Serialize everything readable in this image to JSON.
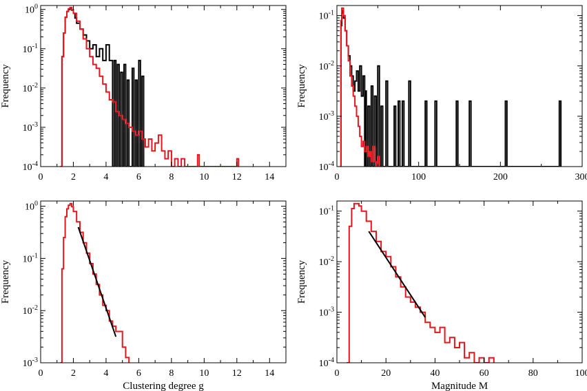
{
  "colors": {
    "black_series": "#000000",
    "red_series": "#e8141c",
    "fit": "#000000"
  },
  "chart_data": [
    {
      "type": "histogram",
      "panel": "top-left",
      "ylabel": "Frequency",
      "xlabel": "",
      "xlim": [
        0,
        15
      ],
      "ylim_log10": [
        -4,
        0.1
      ],
      "xticks": [
        0,
        2,
        4,
        6,
        8,
        10,
        12,
        14
      ],
      "xtick_labels": [
        "0",
        "2",
        "4",
        "6",
        "8",
        "10",
        "12",
        "14"
      ],
      "ytick_exponents": [
        -4,
        -3,
        -2,
        -1,
        0
      ],
      "ytick_base": "10",
      "ytick_exp_labels": [
        "-4",
        "-3",
        "-2",
        "-1",
        "0"
      ],
      "series": [
        {
          "name": "black",
          "color": "#000000",
          "points": [
            [
              1.2,
              -4
            ],
            [
              1.3,
              -1.2
            ],
            [
              1.4,
              -0.6
            ],
            [
              1.5,
              -0.2
            ],
            [
              1.6,
              -0.05
            ],
            [
              1.7,
              0.0
            ],
            [
              1.8,
              0.03
            ],
            [
              1.9,
              -0.02
            ],
            [
              2.0,
              -0.1
            ],
            [
              2.1,
              -0.22
            ],
            [
              2.2,
              -0.35
            ],
            [
              2.4,
              -0.5
            ],
            [
              2.6,
              -0.65
            ],
            [
              2.8,
              -0.8
            ],
            [
              3.0,
              -1.0
            ],
            [
              3.2,
              -0.9
            ],
            [
              3.4,
              -1.2
            ],
            [
              3.6,
              -1.0
            ],
            [
              3.8,
              -1.3
            ],
            [
              4.0,
              -0.9
            ],
            [
              4.2,
              -1.3
            ],
            [
              4.4,
              -4
            ],
            [
              4.5,
              -1.3
            ],
            [
              4.6,
              -4
            ],
            [
              4.7,
              -1.4
            ],
            [
              4.8,
              -4
            ],
            [
              4.9,
              -1.6
            ],
            [
              5.0,
              -4
            ],
            [
              5.1,
              -1.4
            ],
            [
              5.2,
              -4
            ],
            [
              5.3,
              -1.8
            ],
            [
              5.4,
              -4
            ],
            [
              5.6,
              -1.5
            ],
            [
              5.7,
              -4
            ],
            [
              5.8,
              -1.8
            ],
            [
              5.9,
              -4
            ],
            [
              6.0,
              -1.3
            ],
            [
              6.1,
              -4
            ],
            [
              6.2,
              -1.7
            ],
            [
              6.3,
              -4
            ]
          ]
        },
        {
          "name": "red",
          "color": "#e8141c",
          "points": [
            [
              1.2,
              -4
            ],
            [
              1.3,
              -1.2
            ],
            [
              1.4,
              -0.6
            ],
            [
              1.5,
              -0.2
            ],
            [
              1.6,
              -0.05
            ],
            [
              1.7,
              0.02
            ],
            [
              1.8,
              0.05
            ],
            [
              1.9,
              -0.01
            ],
            [
              2.0,
              -0.1
            ],
            [
              2.2,
              -0.3
            ],
            [
              2.4,
              -0.5
            ],
            [
              2.6,
              -0.75
            ],
            [
              2.8,
              -1.0
            ],
            [
              3.0,
              -1.2
            ],
            [
              3.2,
              -1.4
            ],
            [
              3.4,
              -1.5
            ],
            [
              3.6,
              -1.7
            ],
            [
              3.8,
              -1.9
            ],
            [
              4.0,
              -2.1
            ],
            [
              4.2,
              -2.3
            ],
            [
              4.4,
              -2.35
            ],
            [
              4.6,
              -2.6
            ],
            [
              4.8,
              -2.7
            ],
            [
              5.0,
              -2.8
            ],
            [
              5.2,
              -2.9
            ],
            [
              5.4,
              -3.0
            ],
            [
              5.6,
              -3.1
            ],
            [
              5.8,
              -3.2
            ],
            [
              6.0,
              -3.1
            ],
            [
              6.2,
              -3.3
            ],
            [
              6.4,
              -3.5
            ],
            [
              6.6,
              -3.3
            ],
            [
              6.8,
              -3.6
            ],
            [
              7.0,
              -3.4
            ],
            [
              7.2,
              -3.2
            ],
            [
              7.4,
              -3.6
            ],
            [
              7.6,
              -3.8
            ],
            [
              7.8,
              -3.6
            ],
            [
              8.0,
              -4
            ],
            [
              8.2,
              -3.8
            ],
            [
              8.4,
              -4
            ],
            [
              8.6,
              -3.8
            ],
            [
              8.8,
              -4
            ],
            [
              9.6,
              -3.7
            ],
            [
              9.7,
              -4
            ],
            [
              12.0,
              -3.8
            ],
            [
              12.1,
              -4
            ]
          ]
        }
      ]
    },
    {
      "type": "histogram",
      "panel": "top-right",
      "ylabel": "Frequency",
      "xlabel": "",
      "xlim": [
        0,
        300
      ],
      "ylim_log10": [
        -4,
        -0.8
      ],
      "xticks": [
        0,
        100,
        200,
        300
      ],
      "xtick_labels": [
        "0",
        "100",
        "200",
        "300"
      ],
      "ytick_exponents": [
        -4,
        -3,
        -2,
        -1
      ],
      "ytick_base": "10",
      "ytick_exp_labels": [
        "-4",
        "-3",
        "-2",
        "-1"
      ],
      "series": [
        {
          "name": "black",
          "color": "#000000",
          "points": [
            [
              4,
              -4
            ],
            [
              5,
              -1.2
            ],
            [
              6,
              -0.95
            ],
            [
              7,
              -0.9
            ],
            [
              8,
              -1.05
            ],
            [
              10,
              -1.3
            ],
            [
              12,
              -1.6
            ],
            [
              14,
              -1.8
            ],
            [
              16,
              -2.0
            ],
            [
              18,
              -2.2
            ],
            [
              20,
              -2.5
            ],
            [
              22,
              -2.3
            ],
            [
              24,
              -2.1
            ],
            [
              26,
              -2.5
            ],
            [
              28,
              -2.0
            ],
            [
              30,
              -2.6
            ],
            [
              32,
              -2.2
            ],
            [
              34,
              -4
            ],
            [
              35,
              -2.5
            ],
            [
              36,
              -4
            ],
            [
              38,
              -2.8
            ],
            [
              40,
              -4
            ],
            [
              42,
              -2.4
            ],
            [
              44,
              -4
            ],
            [
              46,
              -2.6
            ],
            [
              48,
              -4
            ],
            [
              50,
              -2.0
            ],
            [
              52,
              -4
            ],
            [
              54,
              -2.8
            ],
            [
              56,
              -4
            ],
            [
              60,
              -2.3
            ],
            [
              62,
              -4
            ],
            [
              70,
              -2.8
            ],
            [
              72,
              -4
            ],
            [
              75,
              -2.7
            ],
            [
              77,
              -4
            ],
            [
              80,
              -2.7
            ],
            [
              82,
              -4
            ],
            [
              88,
              -2.3
            ],
            [
              90,
              -4
            ],
            [
              108,
              -2.7
            ],
            [
              110,
              -4
            ],
            [
              120,
              -2.7
            ],
            [
              122,
              -4
            ],
            [
              146,
              -2.7
            ],
            [
              148,
              -4
            ],
            [
              162,
              -2.7
            ],
            [
              164,
              -4
            ],
            [
              206,
              -2.7
            ],
            [
              208,
              -4
            ],
            [
              272,
              -2.7
            ],
            [
              274,
              -4
            ]
          ]
        },
        {
          "name": "red",
          "color": "#e8141c",
          "points": [
            [
              4,
              -4
            ],
            [
              5,
              -1.1
            ],
            [
              6,
              -0.85
            ],
            [
              7,
              -0.85
            ],
            [
              8,
              -1.0
            ],
            [
              10,
              -1.3
            ],
            [
              12,
              -1.6
            ],
            [
              14,
              -1.9
            ],
            [
              16,
              -2.2
            ],
            [
              18,
              -2.4
            ],
            [
              20,
              -2.6
            ],
            [
              22,
              -2.8
            ],
            [
              24,
              -3.0
            ],
            [
              26,
              -3.2
            ],
            [
              28,
              -3.4
            ],
            [
              30,
              -3.6
            ],
            [
              32,
              -3.5
            ],
            [
              34,
              -3.7
            ],
            [
              36,
              -3.6
            ],
            [
              38,
              -3.8
            ],
            [
              40,
              -3.7
            ],
            [
              42,
              -3.9
            ],
            [
              44,
              -3.6
            ],
            [
              46,
              -3.9
            ],
            [
              48,
              -4
            ],
            [
              50,
              -3.8
            ],
            [
              52,
              -4
            ]
          ]
        }
      ]
    },
    {
      "type": "histogram",
      "panel": "bottom-left",
      "ylabel": "Frequency",
      "xlabel": "Clustering degree g",
      "xlim": [
        0,
        15
      ],
      "ylim_log10": [
        -3,
        0.1
      ],
      "xticks": [
        0,
        2,
        4,
        6,
        8,
        10,
        12,
        14
      ],
      "xtick_labels": [
        "0",
        "2",
        "4",
        "6",
        "8",
        "10",
        "12",
        "14"
      ],
      "ytick_exponents": [
        -3,
        -2,
        -1,
        0
      ],
      "ytick_base": "10",
      "ytick_exp_labels": [
        "-3",
        "-2",
        "-1",
        "0"
      ],
      "series": [
        {
          "name": "red",
          "color": "#e8141c",
          "points": [
            [
              1.2,
              -3
            ],
            [
              1.3,
              -1.2
            ],
            [
              1.4,
              -0.6
            ],
            [
              1.5,
              -0.2
            ],
            [
              1.6,
              -0.05
            ],
            [
              1.7,
              0.02
            ],
            [
              1.8,
              0.05
            ],
            [
              1.9,
              -0.01
            ],
            [
              2.0,
              -0.1
            ],
            [
              2.2,
              -0.3
            ],
            [
              2.4,
              -0.5
            ],
            [
              2.6,
              -0.7
            ],
            [
              2.8,
              -0.9
            ],
            [
              3.0,
              -1.1
            ],
            [
              3.2,
              -1.3
            ],
            [
              3.4,
              -1.5
            ],
            [
              3.6,
              -1.7
            ],
            [
              3.8,
              -1.9
            ],
            [
              4.0,
              -2.0
            ],
            [
              4.2,
              -2.2
            ],
            [
              4.4,
              -2.3
            ],
            [
              4.6,
              -2.4
            ],
            [
              4.8,
              -2.4
            ],
            [
              5.0,
              -2.7
            ],
            [
              5.2,
              -2.9
            ],
            [
              5.4,
              -3
            ]
          ]
        }
      ],
      "fit_line": {
        "x": [
          2.3,
          4.6
        ],
        "log10_y": [
          -0.4,
          -2.5
        ]
      }
    },
    {
      "type": "histogram",
      "panel": "bottom-right",
      "ylabel": "Frequency",
      "xlabel": "Magnitude M",
      "xlim": [
        0,
        100
      ],
      "ylim_log10": [
        -4,
        -0.8
      ],
      "xticks": [
        0,
        20,
        40,
        60,
        80,
        100
      ],
      "xtick_labels": [
        "0",
        "20",
        "40",
        "60",
        "80",
        "100"
      ],
      "ytick_exponents": [
        -4,
        -3,
        -2,
        -1
      ],
      "ytick_base": "10",
      "ytick_exp_labels": [
        "-4",
        "-3",
        "-2",
        "-1"
      ],
      "series": [
        {
          "name": "red",
          "color": "#e8141c",
          "points": [
            [
              4,
              -4
            ],
            [
              5,
              -1.3
            ],
            [
              6,
              -0.95
            ],
            [
              7,
              -0.85
            ],
            [
              8,
              -0.85
            ],
            [
              9,
              -0.9
            ],
            [
              10,
              -1.0
            ],
            [
              12,
              -1.2
            ],
            [
              14,
              -1.4
            ],
            [
              16,
              -1.6
            ],
            [
              18,
              -1.8
            ],
            [
              20,
              -1.9
            ],
            [
              22,
              -2.1
            ],
            [
              24,
              -2.3
            ],
            [
              26,
              -2.5
            ],
            [
              28,
              -2.7
            ],
            [
              30,
              -2.8
            ],
            [
              32,
              -2.9
            ],
            [
              34,
              -3.0
            ],
            [
              36,
              -3.2
            ],
            [
              38,
              -3.3
            ],
            [
              40,
              -3.4
            ],
            [
              42,
              -3.3
            ],
            [
              44,
              -3.6
            ],
            [
              46,
              -3.5
            ],
            [
              48,
              -3.7
            ],
            [
              50,
              -3.6
            ],
            [
              52,
              -3.9
            ],
            [
              54,
              -3.8
            ],
            [
              56,
              -4
            ],
            [
              58,
              -3.9
            ],
            [
              60,
              -4
            ],
            [
              62,
              -3.9
            ],
            [
              64,
              -4
            ]
          ]
        }
      ],
      "fit_line": {
        "x": [
          13,
          36
        ],
        "log10_y": [
          -1.4,
          -3.1
        ]
      }
    }
  ]
}
